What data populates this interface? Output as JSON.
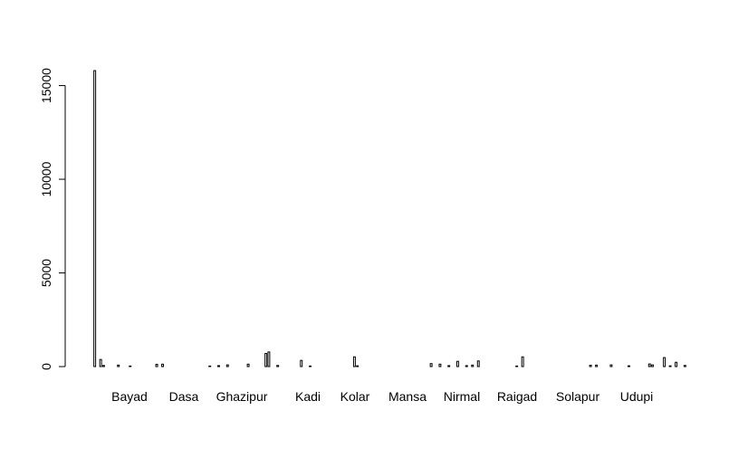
{
  "chart_data": {
    "type": "bar",
    "title": "",
    "xlabel": "",
    "ylabel": "",
    "ylim": [
      0,
      15800
    ],
    "yticks": [
      0,
      5000,
      10000,
      15000
    ],
    "ytick_labels": [
      "0",
      "5000",
      "10000",
      "15000"
    ],
    "xtick_labels": [
      "Bayad",
      "Dasa",
      "Ghazipur",
      "Kadi",
      "Kolar",
      "Mansa",
      "Nirmal",
      "Raigad",
      "Solapur",
      "Udupi"
    ],
    "values": [
      15800,
      0,
      380,
      60,
      0,
      0,
      0,
      0,
      80,
      0,
      0,
      0,
      30,
      0,
      0,
      0,
      0,
      0,
      0,
      0,
      0,
      120,
      0,
      130,
      0,
      0,
      0,
      0,
      0,
      0,
      0,
      0,
      0,
      0,
      0,
      0,
      0,
      0,
      0,
      30,
      0,
      0,
      50,
      0,
      0,
      90,
      0,
      0,
      0,
      0,
      0,
      0,
      130,
      0,
      0,
      0,
      0,
      0,
      700,
      780,
      0,
      0,
      60,
      0,
      0,
      0,
      0,
      0,
      0,
      0,
      330,
      0,
      0,
      30,
      0,
      0,
      0,
      0,
      0,
      0,
      0,
      0,
      0,
      0,
      0,
      0,
      0,
      0,
      520,
      40,
      0,
      0,
      0,
      0,
      0,
      0,
      0,
      0,
      0,
      0,
      0,
      0,
      0,
      0,
      0,
      0,
      0,
      0,
      0,
      0,
      0,
      0,
      0,
      0,
      160,
      0,
      0,
      130,
      0,
      0,
      50,
      0,
      0,
      280,
      0,
      0,
      50,
      0,
      80,
      0,
      300,
      0,
      0,
      0,
      0,
      0,
      0,
      0,
      0,
      0,
      0,
      0,
      0,
      30,
      0,
      520,
      0,
      0,
      0,
      0,
      0,
      0,
      0,
      0,
      0,
      0,
      0,
      0,
      0,
      0,
      0,
      0,
      0,
      0,
      0,
      0,
      0,
      0,
      70,
      0,
      80,
      0,
      0,
      0,
      0,
      90,
      0,
      0,
      0,
      0,
      0,
      40,
      0,
      0,
      0,
      0,
      0,
      0,
      140,
      90,
      0,
      0,
      0,
      480,
      0,
      40,
      0,
      230,
      0,
      0,
      60
    ]
  }
}
